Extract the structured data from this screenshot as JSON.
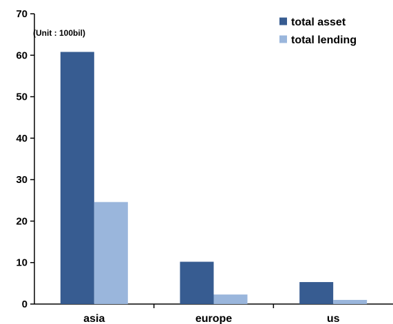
{
  "chart_data": {
    "type": "bar",
    "title": "",
    "xlabel": "",
    "ylabel": "",
    "unit_note": "(Unit : 100bil)",
    "categories": [
      "asia",
      "europe",
      "us"
    ],
    "series": [
      {
        "name": "total asset",
        "color": "#375c91",
        "values": [
          60.8,
          10.2,
          5.3
        ]
      },
      {
        "name": "total lending",
        "color": "#9ab6dc",
        "values": [
          24.6,
          2.3,
          1.0
        ]
      }
    ],
    "ylim": [
      0,
      70
    ],
    "yticks": [
      0,
      10,
      20,
      30,
      40,
      50,
      60,
      70
    ],
    "grid": false,
    "legend_position": "top-right"
  }
}
